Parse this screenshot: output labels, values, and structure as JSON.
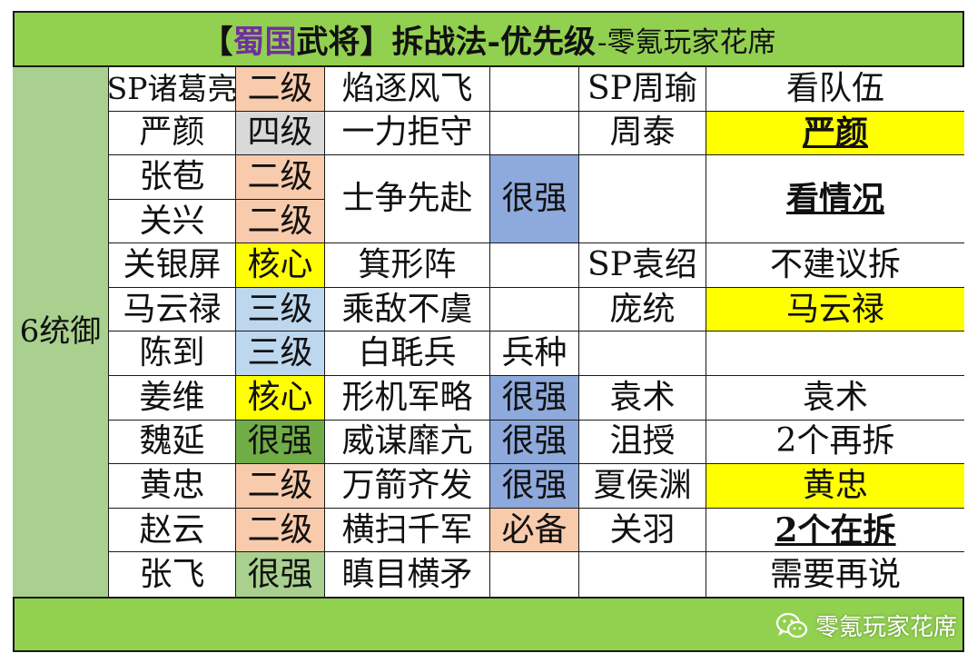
{
  "title": {
    "bracket_open": "【",
    "kingdom": "蜀国",
    "generals": "武将",
    "bracket_close": "】",
    "main": "拆战法-优先级",
    "sub": "-零氪玩家花席"
  },
  "side_label": "6统御",
  "colors": {
    "frame_green": "#92d050",
    "side_green": "#a9d08e",
    "tier_orange": "#f8cbad",
    "tier_gray": "#d9d9d9",
    "tier_yellow": "#ffff00",
    "tier_blue": "#bdd7ee",
    "tier_green": "#70ad47",
    "strength_blue": "#8ea9db",
    "accent_purple": "#7030a0"
  },
  "rows": [
    {
      "general": "SP诸葛亮",
      "tier": "二级",
      "tier_color": "#f8cbad",
      "skill": "焰逐风飞",
      "note": ""
    },
    {
      "general": "严颜",
      "tier": "四级",
      "tier_color": "#d9d9d9",
      "skill": "一力拒守",
      "note": ""
    },
    {
      "general": "张苞",
      "tier": "二级",
      "tier_color": "#f8cbad"
    },
    {
      "general": "关兴",
      "tier": "二级",
      "tier_color": "#f8cbad"
    },
    {
      "general": "关银屏",
      "tier": "核心",
      "tier_color": "#ffff00",
      "skill": "箕形阵",
      "note": ""
    },
    {
      "general": "马云禄",
      "tier": "三级",
      "tier_color": "#bdd7ee",
      "skill": "乘敌不虞",
      "note": ""
    },
    {
      "general": "陈到",
      "tier": "三级",
      "tier_color": "#bdd7ee",
      "skill": "白毦兵",
      "note": "兵种"
    },
    {
      "general": "姜维",
      "tier": "核心",
      "tier_color": "#ffff00",
      "skill": "形机军略",
      "note": "很强"
    },
    {
      "general": "魏延",
      "tier": "很强",
      "tier_color": "#70ad47",
      "skill": "威谋靡亢",
      "note": "很强"
    },
    {
      "general": "黄忠",
      "tier": "二级",
      "tier_color": "#f8cbad",
      "skill": "万箭齐发",
      "note": "很强"
    },
    {
      "general": "赵云",
      "tier": "二级",
      "tier_color": "#f8cbad",
      "skill": "横扫千军",
      "note": "必备"
    },
    {
      "general": "张飞",
      "tier": "很强",
      "tier_color": "#a9d08e",
      "skill": "瞋目横矛",
      "note": ""
    }
  ],
  "merged_skill": {
    "skill": "士争先赴",
    "note": "很强"
  },
  "right_rows": [
    {
      "name": "SP周瑜",
      "result": "看队伍"
    },
    {
      "name": "周泰",
      "result": "严颜"
    },
    {
      "name": "",
      "result": "看情况"
    },
    {
      "name": "SP袁绍",
      "result": "不建议拆"
    },
    {
      "name": "庞统",
      "result": "马云禄"
    },
    {
      "name": "",
      "result": ""
    },
    {
      "name": "袁术",
      "result": "袁术"
    },
    {
      "name": "沮授",
      "result": "2个再拆"
    },
    {
      "name": "夏侯渊",
      "result": "黄忠"
    },
    {
      "name": "关羽",
      "result": "2个在拆"
    },
    {
      "name": "",
      "result": "需要再说"
    }
  ],
  "watermark": {
    "text": "零氪玩家花席",
    "icon": "wechat-icon"
  }
}
